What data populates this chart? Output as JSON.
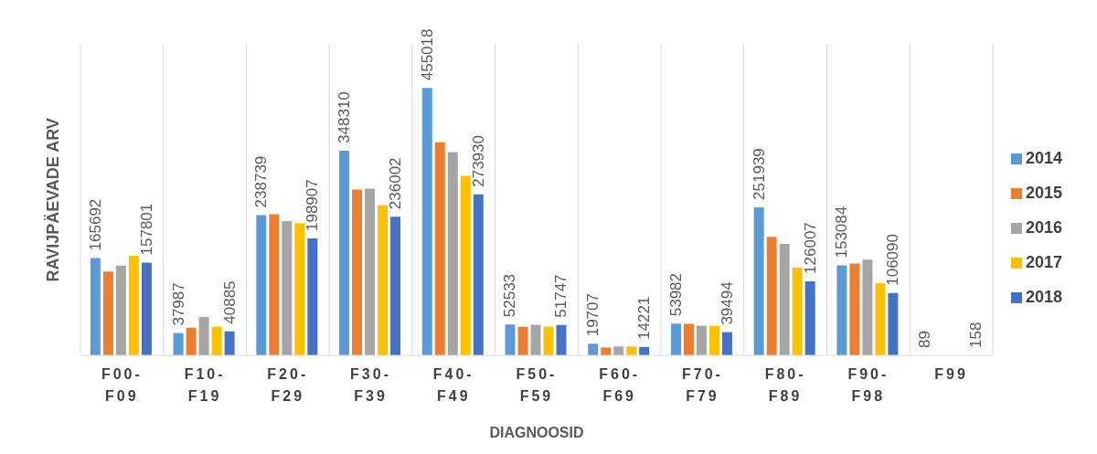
{
  "chart_data": {
    "type": "bar",
    "xlabel": "DIAGNOOSID",
    "ylabel": "RAVIJPÄEVADE ARV",
    "categories": [
      "F00-F09",
      "F10-F19",
      "F20-F29",
      "F30-F39",
      "F40-F49",
      "F50-F59",
      "F60-F69",
      "F70-F79",
      "F80-F89",
      "F90-F98",
      "F99"
    ],
    "ylim": [
      0,
      530000
    ],
    "tick_labels": "x",
    "grid": "x",
    "legend": "right",
    "series": [
      {
        "name": "2014",
        "color": "#5b9bd5",
        "values": [
          165692,
          37987,
          238739,
          348310,
          455018,
          52533,
          19707,
          53982,
          251939,
          153084,
          89
        ],
        "value_labels": [
          "165692",
          "37987",
          "238739",
          "348310",
          "455018",
          "52533",
          "19707",
          "53982",
          "251939",
          "153084",
          "89"
        ]
      },
      {
        "name": "2015",
        "color": "#ed7d31",
        "values": [
          142700,
          47000,
          240100,
          282100,
          362700,
          48700,
          13400,
          53700,
          201500,
          156100,
          null
        ]
      },
      {
        "name": "2016",
        "color": "#a5a5a5",
        "values": [
          152800,
          65500,
          228300,
          283800,
          345900,
          52000,
          15100,
          50400,
          189700,
          162900,
          null
        ]
      },
      {
        "name": "2017",
        "color": "#ffc000",
        "values": [
          169600,
          48700,
          225000,
          255200,
          305600,
          48700,
          15100,
          50400,
          149400,
          122600,
          null
        ]
      },
      {
        "name": "2018",
        "color": "#4472c4",
        "values": [
          157801,
          40885,
          198907,
          236002,
          273930,
          51747,
          14221,
          39494,
          126007,
          106090,
          158
        ],
        "value_labels": [
          "157801",
          "40885",
          "198907",
          "236002",
          "273930",
          "51747",
          "14221",
          "39494",
          "126007",
          "106090",
          "158"
        ]
      }
    ]
  }
}
